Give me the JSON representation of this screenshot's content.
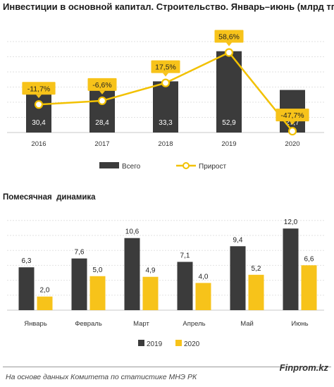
{
  "chart_data": [
    {
      "type": "bar",
      "title": "Инвестиции в основной капитал. Строительство. Январь–июнь (млрд тг)",
      "categories": [
        "2016",
        "2017",
        "2018",
        "2019",
        "2020"
      ],
      "series": [
        {
          "name": "Всего",
          "type": "bar",
          "color": "#3b3b3b",
          "values": [
            30.4,
            28.4,
            33.3,
            52.9,
            27.7
          ],
          "labels": [
            "30,4",
            "28,4",
            "33,3",
            "52,9",
            "27,7"
          ]
        },
        {
          "name": "Прирост",
          "type": "line",
          "color": "#f2c100",
          "values": [
            -11.7,
            -6.6,
            17.5,
            58.6,
            -47.7
          ],
          "labels": [
            "-11,7%",
            "-6,6%",
            "17,5%",
            "58,6%",
            "-47,7%"
          ]
        }
      ],
      "legend_position": "bottom",
      "grid": true
    },
    {
      "type": "bar",
      "title": "Помесячная  динамика",
      "categories": [
        "Январь",
        "Февраль",
        "Март",
        "Апрель",
        "Май",
        "Июнь"
      ],
      "series": [
        {
          "name": "2019",
          "color": "#3b3b3b",
          "values": [
            6.3,
            7.6,
            10.6,
            7.1,
            9.4,
            12.0
          ],
          "labels": [
            "6,3",
            "7,6",
            "10,6",
            "7,1",
            "9,4",
            "12,0"
          ]
        },
        {
          "name": "2020",
          "color": "#f7c31a",
          "values": [
            2.0,
            5.0,
            4.9,
            4.0,
            5.2,
            6.6
          ],
          "labels": [
            "2,0",
            "5,0",
            "4,9",
            "4,0",
            "5,2",
            "6,6"
          ]
        }
      ],
      "legend_position": "bottom",
      "grid": true
    }
  ],
  "footer": {
    "source": "На основе данных Комитета по статистике МНЭ РК",
    "brand": "Finprom.kz"
  }
}
